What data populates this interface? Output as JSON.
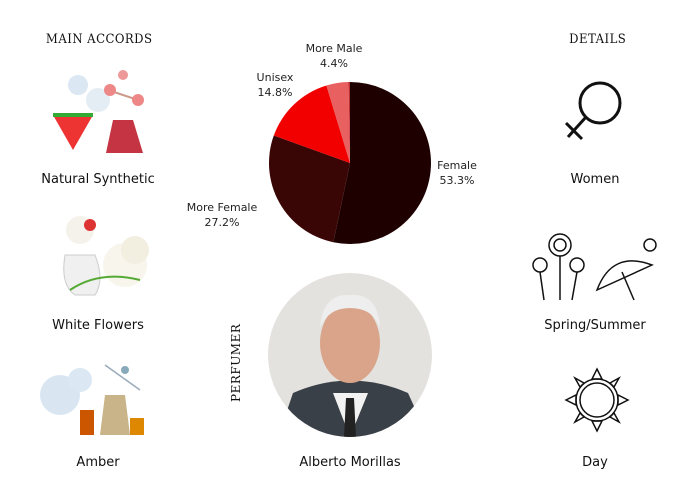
{
  "headers": {
    "main_accords": "MAIN ACCORDS",
    "details": "DETAILS",
    "perfumer": "PERFUMER"
  },
  "accords": [
    {
      "label": "Natural Synthetic"
    },
    {
      "label": "White Flowers"
    },
    {
      "label": "Amber"
    }
  ],
  "details": [
    {
      "label": "Women",
      "icon": "female-symbol-icon"
    },
    {
      "label": "Spring/Summer",
      "icon": "flowers-umbrella-sun-icon"
    },
    {
      "label": "Day",
      "icon": "sun-icon"
    }
  ],
  "perfumer": {
    "name": "Alberto Morillas"
  },
  "chart_data": {
    "type": "pie",
    "slices": [
      {
        "name": "Female",
        "label": "53.3%",
        "value": 53.3,
        "color": "#1e0000"
      },
      {
        "name": "More Female",
        "label": "27.2%",
        "value": 27.2,
        "color": "#3a0505"
      },
      {
        "name": "Unisex",
        "label": "14.8%",
        "value": 14.8,
        "color": "#f20000"
      },
      {
        "name": "More Male",
        "label": "4.4%",
        "value": 4.4,
        "color": "#e86060"
      },
      {
        "name": "",
        "label": "",
        "value": 0.3,
        "color": "#c03030"
      }
    ]
  }
}
